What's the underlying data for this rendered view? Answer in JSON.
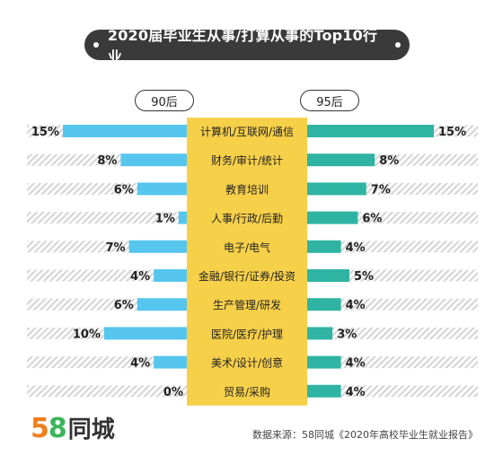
{
  "title": "2020届毕业生从事/打算从事的Top10行业",
  "left_group": "90后",
  "right_group": "95后",
  "chart_data": {
    "type": "bar",
    "categories": [
      "计算机/互联网/通信",
      "财务/审计/统计",
      "教育培训",
      "人事/行政/后勤",
      "电子/电气",
      "金融/银行/证券/投资",
      "生产管理/研发",
      "医院/医疗/护理",
      "美术/设计/创意",
      "贸易/采购"
    ],
    "series": [
      {
        "name": "90后",
        "values": [
          15,
          8,
          6,
          1,
          7,
          4,
          6,
          10,
          4,
          0
        ]
      },
      {
        "name": "95后",
        "values": [
          15,
          8,
          7,
          6,
          4,
          5,
          4,
          3,
          4,
          4
        ]
      }
    ],
    "unit": "%",
    "xlim": [
      0,
      15
    ]
  },
  "colors": {
    "left_bar": "#56c6ee",
    "right_bar": "#2fb4a3",
    "label_bg": "#f7d04a",
    "track": "#d9d9d9"
  },
  "logo": {
    "number_5": "5",
    "number_8": "8",
    "text": "同城"
  },
  "source": "数据来源：58同城《2020年高校毕业生就业报告》"
}
